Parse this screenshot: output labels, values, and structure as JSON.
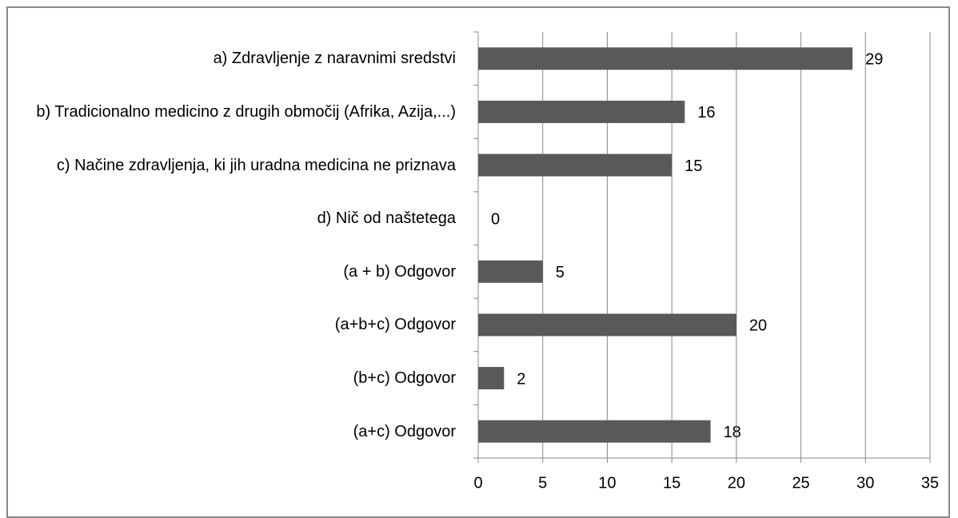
{
  "chart_data": {
    "type": "bar",
    "orientation": "horizontal",
    "categories": [
      "a) Zdravljenje z naravnimi sredstvi",
      "b) Tradicionalno medicino z drugih območij (Afrika, Azija,...)",
      "c) Načine zdravljenja, ki jih uradna medicina ne priznava",
      "d) Nič od naštetega",
      "(a + b) Odgovor",
      "(a+b+c) Odgovor",
      "(b+c) Odgovor",
      "(a+c) Odgovor"
    ],
    "values": [
      29,
      16,
      15,
      0,
      5,
      20,
      2,
      18
    ],
    "color": "#595959",
    "xlim": [
      0,
      35
    ],
    "xticks": [
      0,
      5,
      10,
      15,
      20,
      25,
      30,
      35
    ],
    "grid": true
  }
}
